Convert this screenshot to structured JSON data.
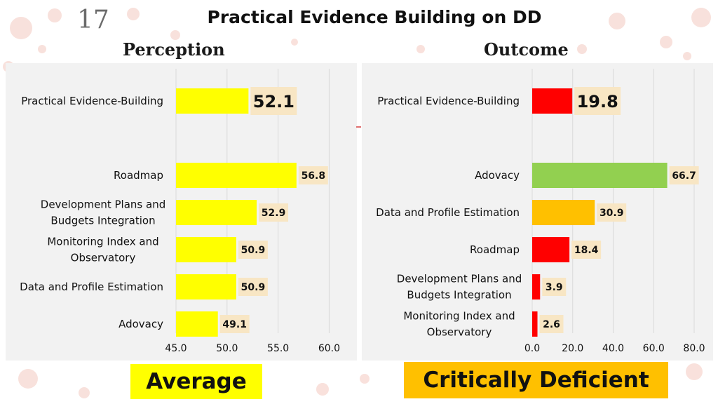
{
  "slide_number": "17",
  "title": "Practical Evidence Building on DD",
  "colors": {
    "yellow": "#ffff00",
    "red": "#ff0000",
    "green": "#92d050",
    "orange": "#ffc000",
    "label_bg": "#f8e6c4",
    "panel_bg": "#f2f2f2"
  },
  "chart_data": [
    {
      "type": "bar",
      "orientation": "horizontal",
      "heading": "Perception",
      "categories": [
        "Practical Evidence-Building",
        "Roadmap",
        "Development Plans and Budgets Integration",
        "Monitoring Index and Observatory",
        "Data and Profile Estimation",
        "Adovacy"
      ],
      "values": [
        52.1,
        56.8,
        52.9,
        50.9,
        50.9,
        49.1
      ],
      "value_labels": [
        "52.1",
        "56.8",
        "52.9",
        "50.9",
        "50.9",
        "49.1"
      ],
      "category_lines": [
        [
          "Practical Evidence-Building"
        ],
        [
          "Roadmap"
        ],
        [
          "Development Plans and",
          "Budgets Integration"
        ],
        [
          "Monitoring Index and",
          "Observatory"
        ],
        [
          "Data and Profile Estimation"
        ],
        [
          "Adovacy"
        ]
      ],
      "bar_colors": [
        "#ffff00",
        "#ffff00",
        "#ffff00",
        "#ffff00",
        "#ffff00",
        "#ffff00"
      ],
      "xlim": [
        45.0,
        61.0
      ],
      "ticks": [
        45.0,
        50.0,
        55.0,
        60.0
      ],
      "tick_labels": [
        "45.0",
        "50.0",
        "55.0",
        "60.0"
      ],
      "grid": true,
      "gap_after_first": true
    },
    {
      "type": "bar",
      "orientation": "horizontal",
      "heading": "Outcome",
      "categories": [
        "Practical Evidence-Building",
        "Adovacy",
        "Data and Profile Estimation",
        "Roadmap",
        "Development Plans and Budgets Integration",
        "Monitoring Index and Observatory"
      ],
      "values": [
        19.8,
        66.7,
        30.9,
        18.4,
        3.9,
        2.6
      ],
      "value_labels": [
        "19.8",
        "66.7",
        "30.9",
        "18.4",
        "3.9",
        "2.6"
      ],
      "category_lines": [
        [
          "Practical Evidence-Building"
        ],
        [
          "Adovacy"
        ],
        [
          "Data and Profile Estimation"
        ],
        [
          "Roadmap"
        ],
        [
          "Development Plans and",
          "Budgets Integration"
        ],
        [
          "Monitoring Index and",
          "Observatory"
        ]
      ],
      "bar_colors": [
        "#ff0000",
        "#92d050",
        "#ffc000",
        "#ff0000",
        "#ff0000",
        "#ff0000"
      ],
      "xlim": [
        0.0,
        80.0
      ],
      "ticks": [
        0.0,
        20.0,
        40.0,
        60.0,
        80.0
      ],
      "tick_labels": [
        "0.0",
        "20.0",
        "40.0",
        "60.0",
        "80.0"
      ],
      "grid": true,
      "gap_after_first": true
    }
  ],
  "verdicts": {
    "perception": "Average",
    "outcome": "Critically Deficient"
  }
}
